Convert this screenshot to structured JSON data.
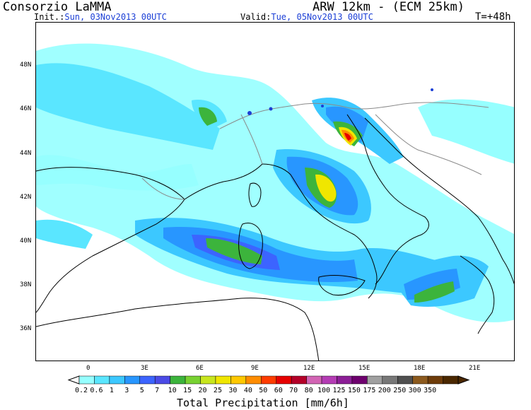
{
  "header": {
    "source": "Consorzio LaMMA",
    "model": "ARW 12km - (ECM 25km)",
    "init_label": "Init.:",
    "init_value": "Sun, 03Nov2013 00UTC",
    "valid_label": "Valid:",
    "valid_value": "Tue, 05Nov2013 00UTC",
    "lead_time": "T=+48h"
  },
  "map": {
    "lat_labels": [
      "48N",
      "46N",
      "44N",
      "42N",
      "40N",
      "38N",
      "36N"
    ],
    "lon_labels": [
      "0",
      "3E",
      "6E",
      "9E",
      "12E",
      "15E",
      "18E",
      "21E"
    ],
    "colors": {
      "sea": "#ffffff",
      "coast": "#000000",
      "borders": "#8a8a8a",
      "rivers": "#1b3fd6"
    }
  },
  "legend": {
    "title": "Total Precipitation [mm/6h]",
    "levels": [
      "0.2",
      "0.6",
      "1",
      "3",
      "5",
      "7",
      "10",
      "15",
      "20",
      "25",
      "30",
      "40",
      "50",
      "60",
      "70",
      "80",
      "100",
      "125",
      "150",
      "175",
      "200",
      "250",
      "300",
      "350"
    ],
    "colors": [
      "#96ffff",
      "#5ae6ff",
      "#3cc8ff",
      "#2896ff",
      "#3c64ff",
      "#4b4be6",
      "#3cb43c",
      "#78d232",
      "#c8e61e",
      "#f0e600",
      "#ffc800",
      "#ff8c00",
      "#ff3c00",
      "#e60000",
      "#b40028",
      "#d264b4",
      "#b43cb4",
      "#8c1e96",
      "#6e006e",
      "#a0a0a0",
      "#787878",
      "#505050",
      "#8c5a1e",
      "#6e3c0a",
      "#4b2800"
    ]
  }
}
